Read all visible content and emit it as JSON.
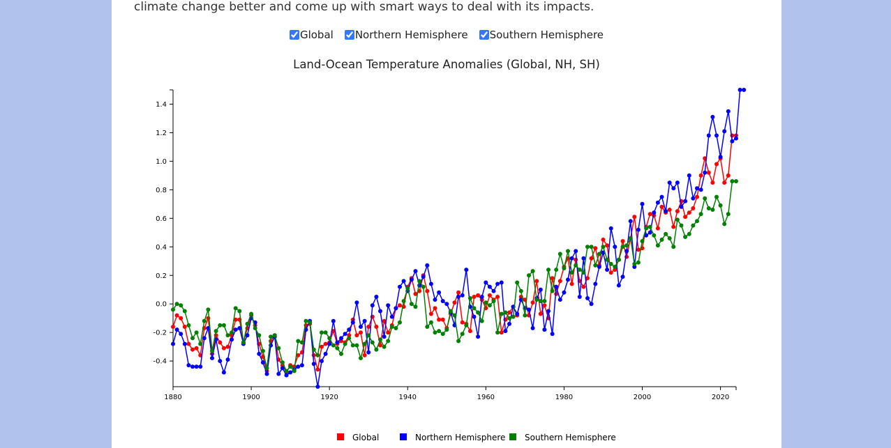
{
  "intro_text": "climate change better and come up with smart ways to deal with its impacts.",
  "toggles": [
    {
      "label": "Global",
      "checked": true
    },
    {
      "label": "Northern Hemisphere",
      "checked": true
    },
    {
      "label": "Southern Hemisphere",
      "checked": true
    }
  ],
  "colors": {
    "background": "#b1c3ec",
    "global": "#ff0000",
    "nh": "#0000ff",
    "sh": "#008000"
  },
  "chart_data": {
    "type": "line",
    "title": "Land-Ocean Temperature Anomalies (Global, NH, SH)",
    "xlabel": "",
    "ylabel": "",
    "xlim": [
      1880,
      2024
    ],
    "ylim": [
      -0.58,
      1.5
    ],
    "x_ticks": [
      1880,
      1900,
      1920,
      1940,
      1960,
      1980,
      2000,
      2020
    ],
    "y_ticks": [
      -0.4,
      -0.2,
      0.0,
      0.2,
      0.4,
      0.6,
      0.8,
      1.0,
      1.2,
      1.4
    ],
    "y_tick_labels": [
      "-0.4",
      "-0.2",
      "0.0",
      "0.2",
      "0.4",
      "0.6",
      "0.8",
      "1.0",
      "1.2",
      "1.4"
    ],
    "grid": false,
    "legend_position": "bottom",
    "start_year": 1880,
    "series": [
      {
        "name": "Global",
        "color": "#ff0000",
        "values": [
          -0.16,
          -0.08,
          -0.1,
          -0.16,
          -0.28,
          -0.32,
          -0.31,
          -0.36,
          -0.17,
          -0.1,
          -0.35,
          -0.22,
          -0.27,
          -0.31,
          -0.3,
          -0.22,
          -0.11,
          -0.11,
          -0.27,
          -0.17,
          -0.08,
          -0.15,
          -0.28,
          -0.37,
          -0.47,
          -0.26,
          -0.22,
          -0.39,
          -0.43,
          -0.48,
          -0.43,
          -0.44,
          -0.36,
          -0.34,
          -0.15,
          -0.14,
          -0.36,
          -0.46,
          -0.3,
          -0.28,
          -0.27,
          -0.19,
          -0.28,
          -0.26,
          -0.27,
          -0.22,
          -0.11,
          -0.22,
          -0.2,
          -0.36,
          -0.16,
          -0.09,
          -0.16,
          -0.29,
          -0.12,
          -0.2,
          -0.15,
          -0.03,
          -0.01,
          -0.02,
          0.12,
          0.18,
          0.07,
          0.09,
          0.2,
          0.09,
          -0.07,
          -0.03,
          -0.11,
          -0.11,
          -0.17,
          -0.07,
          0.01,
          0.08,
          -0.13,
          -0.14,
          -0.19,
          0.05,
          0.06,
          0.03,
          -0.03,
          0.06,
          0.03,
          0.05,
          -0.2,
          -0.11,
          -0.06,
          -0.02,
          -0.08,
          0.05,
          0.03,
          -0.08,
          0.01,
          0.16,
          -0.07,
          -0.01,
          -0.1,
          0.18,
          0.07,
          0.16,
          0.26,
          0.32,
          0.14,
          0.31,
          0.16,
          0.12,
          0.18,
          0.32,
          0.39,
          0.27,
          0.45,
          0.41,
          0.22,
          0.24,
          0.31,
          0.44,
          0.33,
          0.46,
          0.61,
          0.38,
          0.39,
          0.54,
          0.63,
          0.62,
          0.53,
          0.68,
          0.64,
          0.66,
          0.54,
          0.65,
          0.72,
          0.61,
          0.64,
          0.67,
          0.75,
          0.9,
          1.02,
          0.92,
          0.85,
          0.98,
          1.02,
          0.85,
          0.9,
          1.18,
          1.18
        ]
      },
      {
        "name": "Northern Hemisphere",
        "color": "#0000ff",
        "values": [
          -0.28,
          -0.18,
          -0.21,
          -0.28,
          -0.43,
          -0.44,
          -0.44,
          -0.44,
          -0.24,
          -0.17,
          -0.38,
          -0.25,
          -0.4,
          -0.48,
          -0.39,
          -0.25,
          -0.18,
          -0.17,
          -0.28,
          -0.22,
          -0.1,
          -0.13,
          -0.35,
          -0.41,
          -0.49,
          -0.29,
          -0.23,
          -0.49,
          -0.45,
          -0.5,
          -0.48,
          -0.46,
          -0.44,
          -0.43,
          -0.18,
          -0.12,
          -0.42,
          -0.58,
          -0.4,
          -0.35,
          -0.28,
          -0.12,
          -0.27,
          -0.24,
          -0.21,
          -0.18,
          -0.13,
          0.01,
          -0.16,
          -0.12,
          -0.34,
          -0.01,
          0.05,
          -0.05,
          -0.23,
          -0.01,
          -0.09,
          -0.03,
          0.12,
          0.16,
          0.09,
          0.17,
          0.23,
          0.13,
          0.19,
          0.27,
          0.14,
          0.03,
          0.08,
          0.02,
          0.0,
          -0.06,
          -0.15,
          0.05,
          0.06,
          0.24,
          -0.02,
          -0.09,
          -0.23,
          0.05,
          0.15,
          0.12,
          0.09,
          0.14,
          0.15,
          -0.19,
          -0.14,
          -0.02,
          -0.07,
          0.03,
          -0.03,
          -0.04,
          -0.17,
          0.04,
          0.1,
          -0.18,
          -0.05,
          -0.21,
          0.12,
          0.03,
          0.08,
          0.17,
          0.32,
          0.37,
          0.05,
          0.32,
          0.04,
          0.0,
          0.14,
          0.26,
          0.36,
          0.24,
          0.53,
          0.4,
          0.13,
          0.19,
          0.37,
          0.58,
          0.26,
          0.52,
          0.7,
          0.48,
          0.5,
          0.64,
          0.71,
          0.75,
          0.65,
          0.85,
          0.81,
          0.85,
          0.68,
          0.72,
          0.9,
          0.74,
          0.81,
          0.8,
          0.92,
          1.18,
          1.31,
          1.18,
          1.03,
          1.21,
          1.35,
          1.14,
          1.16,
          1.5,
          1.5
        ]
      },
      {
        "name": "Southern Hemisphere",
        "color": "#008000",
        "values": [
          -0.04,
          0.0,
          -0.01,
          -0.05,
          -0.15,
          -0.24,
          -0.2,
          -0.28,
          -0.12,
          -0.04,
          -0.33,
          -0.19,
          -0.15,
          -0.15,
          -0.22,
          -0.2,
          -0.03,
          -0.05,
          -0.27,
          -0.14,
          -0.07,
          -0.17,
          -0.22,
          -0.33,
          -0.45,
          -0.23,
          -0.22,
          -0.31,
          -0.41,
          -0.47,
          -0.44,
          -0.47,
          -0.26,
          -0.27,
          -0.12,
          -0.13,
          -0.32,
          -0.36,
          -0.2,
          -0.2,
          -0.24,
          -0.29,
          -0.31,
          -0.35,
          -0.28,
          -0.24,
          -0.29,
          -0.29,
          -0.38,
          -0.28,
          -0.22,
          -0.27,
          -0.32,
          -0.25,
          -0.3,
          -0.26,
          -0.16,
          -0.17,
          -0.13,
          0.02,
          0.11,
          0.0,
          -0.02,
          0.16,
          0.12,
          -0.16,
          -0.13,
          -0.2,
          -0.19,
          -0.21,
          -0.18,
          -0.05,
          -0.08,
          -0.26,
          -0.21,
          -0.15,
          0.04,
          -0.03,
          -0.06,
          -0.12,
          0.01,
          -0.01,
          0.02,
          -0.2,
          -0.07,
          -0.06,
          -0.1,
          -0.09,
          0.15,
          0.09,
          -0.08,
          0.2,
          0.23,
          0.03,
          0.02,
          0.02,
          0.24,
          0.09,
          0.24,
          0.35,
          0.25,
          0.37,
          0.22,
          0.27,
          0.24,
          0.22,
          0.4,
          0.4,
          0.27,
          0.35,
          0.4,
          0.31,
          0.28,
          0.26,
          0.31,
          0.4,
          0.41,
          0.46,
          0.28,
          0.29,
          0.44,
          0.53,
          0.54,
          0.48,
          0.41,
          0.45,
          0.49,
          0.46,
          0.4,
          0.59,
          0.55,
          0.47,
          0.49,
          0.55,
          0.58,
          0.63,
          0.74,
          0.67,
          0.66,
          0.75,
          0.69,
          0.56,
          0.63,
          0.86,
          0.86
        ]
      }
    ]
  }
}
